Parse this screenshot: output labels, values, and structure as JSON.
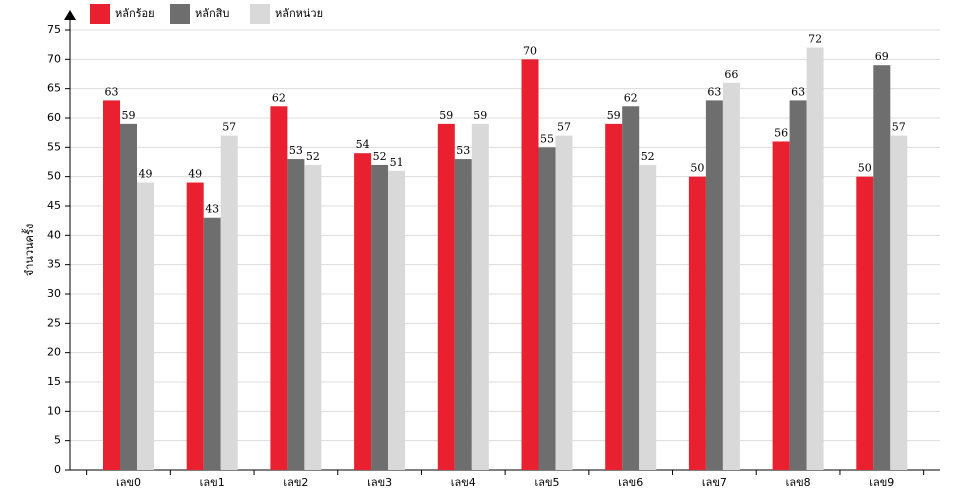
{
  "chart_data": {
    "type": "bar",
    "y_label": "จำนวนครั้ง",
    "categories": [
      "เลข0",
      "เลข1",
      "เลข2",
      "เลข3",
      "เลข4",
      "เลข5",
      "เลข6",
      "เลข7",
      "เลข8",
      "เลข9"
    ],
    "series": [
      {
        "name": "หลักร้อย",
        "color": "#e8202f",
        "values": [
          63,
          49,
          62,
          54,
          59,
          70,
          59,
          50,
          56,
          50
        ]
      },
      {
        "name": "หลักสิบ",
        "color": "#6e6e6e",
        "values": [
          59,
          43,
          53,
          52,
          53,
          55,
          62,
          63,
          63,
          69
        ]
      },
      {
        "name": "หลักหน่วย",
        "color": "#d9d9d9",
        "values": [
          49,
          57,
          52,
          51,
          59,
          57,
          52,
          66,
          72,
          57
        ]
      }
    ],
    "ylim": [
      0,
      75
    ],
    "yticks": [
      0,
      5,
      10,
      15,
      20,
      25,
      30,
      35,
      40,
      45,
      50,
      55,
      60,
      65,
      70,
      75
    ],
    "grid": true
  }
}
